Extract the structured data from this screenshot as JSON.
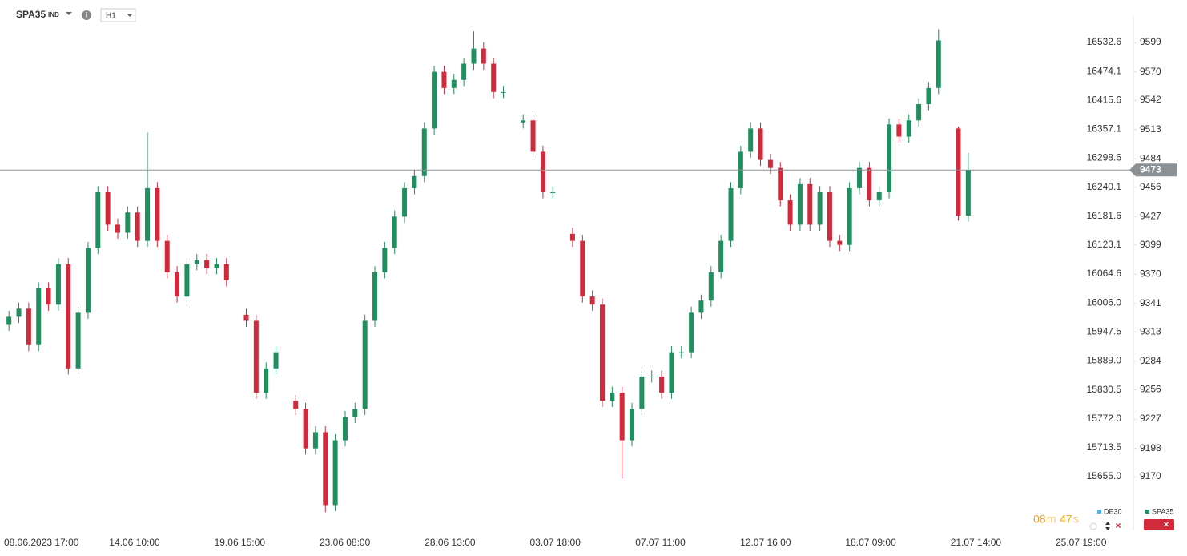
{
  "header": {
    "symbol": "SPA35",
    "market": "IND",
    "interval": "H1"
  },
  "chart_data": {
    "type": "candlestick",
    "up_color": "#1f8f5f",
    "down_color": "#d12a3c",
    "ylim": [
      15549.8,
      16586.0
    ],
    "yticks": [
      16532.6,
      16474.1,
      16415.6,
      16357.1,
      16298.6,
      16240.1,
      16181.6,
      16123.1,
      16064.6,
      {
        "value": 16006,
        "label": "16006.0"
      },
      15947.5,
      {
        "value": 15889,
        "label": "15889.0"
      },
      15830.5,
      {
        "value": 15772,
        "label": "15772.0"
      },
      15713.5,
      {
        "value": 15655,
        "label": "15655.0"
      }
    ],
    "y2lim": [
      9118.6,
      9625.1
    ],
    "y2ticks": [
      9599,
      9570,
      9542,
      9513,
      9484,
      9456,
      9427,
      9399,
      9370,
      9341,
      9313,
      9284,
      9256,
      9227,
      9198,
      9170
    ],
    "x_labels": [
      "08.06.2023  17:00",
      "14.06  10:00",
      "19.06  15:00",
      "23.06  08:00",
      "28.06  13:00",
      "03.07  18:00",
      "07.07  11:00",
      "12.07  16:00",
      "18.07  09:00",
      "21.07  14:00",
      "25.07  19:00"
    ],
    "current_price": 9473,
    "series": [
      {
        "name": "SPA35",
        "axis": "y2",
        "color": "#1f8f5f",
        "open": [
          9320,
          9328,
          9336,
          9300,
          9356,
          9340,
          9380,
          9277,
          9332,
          9396,
          9451,
          9419,
          9411,
          9431,
          9403,
          9455,
          9403,
          9372,
          9348,
          9380,
          9384,
          9376,
          9380,
          null,
          9330,
          9324,
          9253,
          9277,
          null,
          9245,
          9237,
          9198,
          9214,
          9142,
          9206,
          9229,
          9237,
          9324,
          9372,
          9396,
          9427,
          9455,
          9467,
          9514,
          9570,
          9554,
          9562,
          9578,
          9593,
          9578,
          9550,
          null,
          9520,
          9522,
          9491,
          9451,
          null,
          9410,
          9403,
          9348,
          9340,
          9245,
          9253,
          9206,
          9237,
          9269,
          9269,
          9253,
          9293,
          9293,
          9332,
          9344,
          9372,
          9403,
          9455,
          9491,
          9514,
          9483,
          9475,
          9443,
          9419,
          9459,
          9419,
          9451,
          9403,
          9399,
          9455,
          9475,
          9443,
          9451,
          9518,
          9506,
          9522,
          9538,
          9554,
          null,
          9514,
          9428
        ],
        "high": [
          9334,
          9342,
          9342,
          9362,
          9362,
          9386,
          9386,
          9338,
          9402,
          9457,
          9457,
          9425,
          9437,
          9437,
          9510,
          9461,
          9409,
          9378,
          9386,
          9390,
          9390,
          9386,
          9386,
          null,
          9336,
          9330,
          9283,
          9299,
          null,
          9251,
          9243,
          9220,
          9220,
          9212,
          9235,
          9243,
          9330,
          9378,
          9402,
          9433,
          9461,
          9473,
          9520,
          9576,
          9576,
          9568,
          9584,
          9610,
          9599,
          9584,
          9556,
          null,
          9528,
          9528,
          9497,
          9457,
          null,
          9416,
          9409,
          9354,
          9346,
          9259,
          9259,
          9243,
          9275,
          9275,
          9275,
          9299,
          9299,
          9338,
          9350,
          9378,
          9409,
          9461,
          9497,
          9520,
          9520,
          9489,
          9481,
          9449,
          9465,
          9465,
          9457,
          9457,
          9409,
          9461,
          9481,
          9481,
          9457,
          9524,
          9524,
          9528,
          9544,
          9560,
          9612,
          null,
          9516,
          9490
        ],
        "low": [
          9314,
          9322,
          9294,
          9294,
          9334,
          9334,
          9271,
          9271,
          9326,
          9390,
          9413,
          9405,
          9405,
          9397,
          9397,
          9397,
          9366,
          9342,
          9342,
          9374,
          9370,
          9370,
          9358,
          null,
          9318,
          9247,
          9247,
          9271,
          null,
          9231,
          9192,
          9192,
          9135,
          9136,
          9200,
          9223,
          9231,
          9318,
          9366,
          9390,
          9421,
          9449,
          9461,
          9508,
          9548,
          9548,
          9556,
          9572,
          9572,
          9544,
          9544,
          null,
          9514,
          9485,
          9445,
          9445,
          null,
          9397,
          9342,
          9334,
          9239,
          9239,
          9168,
          9200,
          9231,
          9263,
          9247,
          9247,
          9287,
          9287,
          9326,
          9338,
          9366,
          9397,
          9449,
          9485,
          9477,
          9469,
          9437,
          9413,
          9413,
          9413,
          9413,
          9397,
          9393,
          9393,
          9449,
          9437,
          9437,
          9445,
          9500,
          9500,
          9516,
          9532,
          9548,
          null,
          9423,
          9422
        ],
        "close": [
          9328,
          9336,
          9300,
          9356,
          9340,
          9380,
          9277,
          9332,
          9396,
          9451,
          9419,
          9411,
          9431,
          9403,
          9455,
          9403,
          9372,
          9348,
          9380,
          9384,
          9376,
          9380,
          9364,
          null,
          9324,
          9253,
          9277,
          9293,
          null,
          9237,
          9198,
          9214,
          9142,
          9206,
          9229,
          9237,
          9324,
          9372,
          9396,
          9427,
          9455,
          9467,
          9514,
          9570,
          9554,
          9562,
          9578,
          9593,
          9578,
          9550,
          9550,
          null,
          9522,
          9491,
          9451,
          9451,
          null,
          9403,
          9348,
          9340,
          9245,
          9253,
          9206,
          9237,
          9269,
          9269,
          9253,
          9293,
          9293,
          9332,
          9344,
          9372,
          9403,
          9455,
          9491,
          9514,
          9483,
          9475,
          9443,
          9419,
          9459,
          9419,
          9451,
          9403,
          9399,
          9455,
          9475,
          9443,
          9451,
          9518,
          9506,
          9522,
          9538,
          9554,
          9601,
          null,
          9428,
          9473
        ]
      }
    ],
    "legend": [
      {
        "name": "DE30",
        "color": "#4fb3e8"
      },
      {
        "name": "SPA35",
        "color": "#1f8f5f"
      }
    ]
  },
  "countdown": {
    "minutes": "08",
    "min_unit": "m",
    "seconds": "47",
    "sec_unit": "s"
  }
}
